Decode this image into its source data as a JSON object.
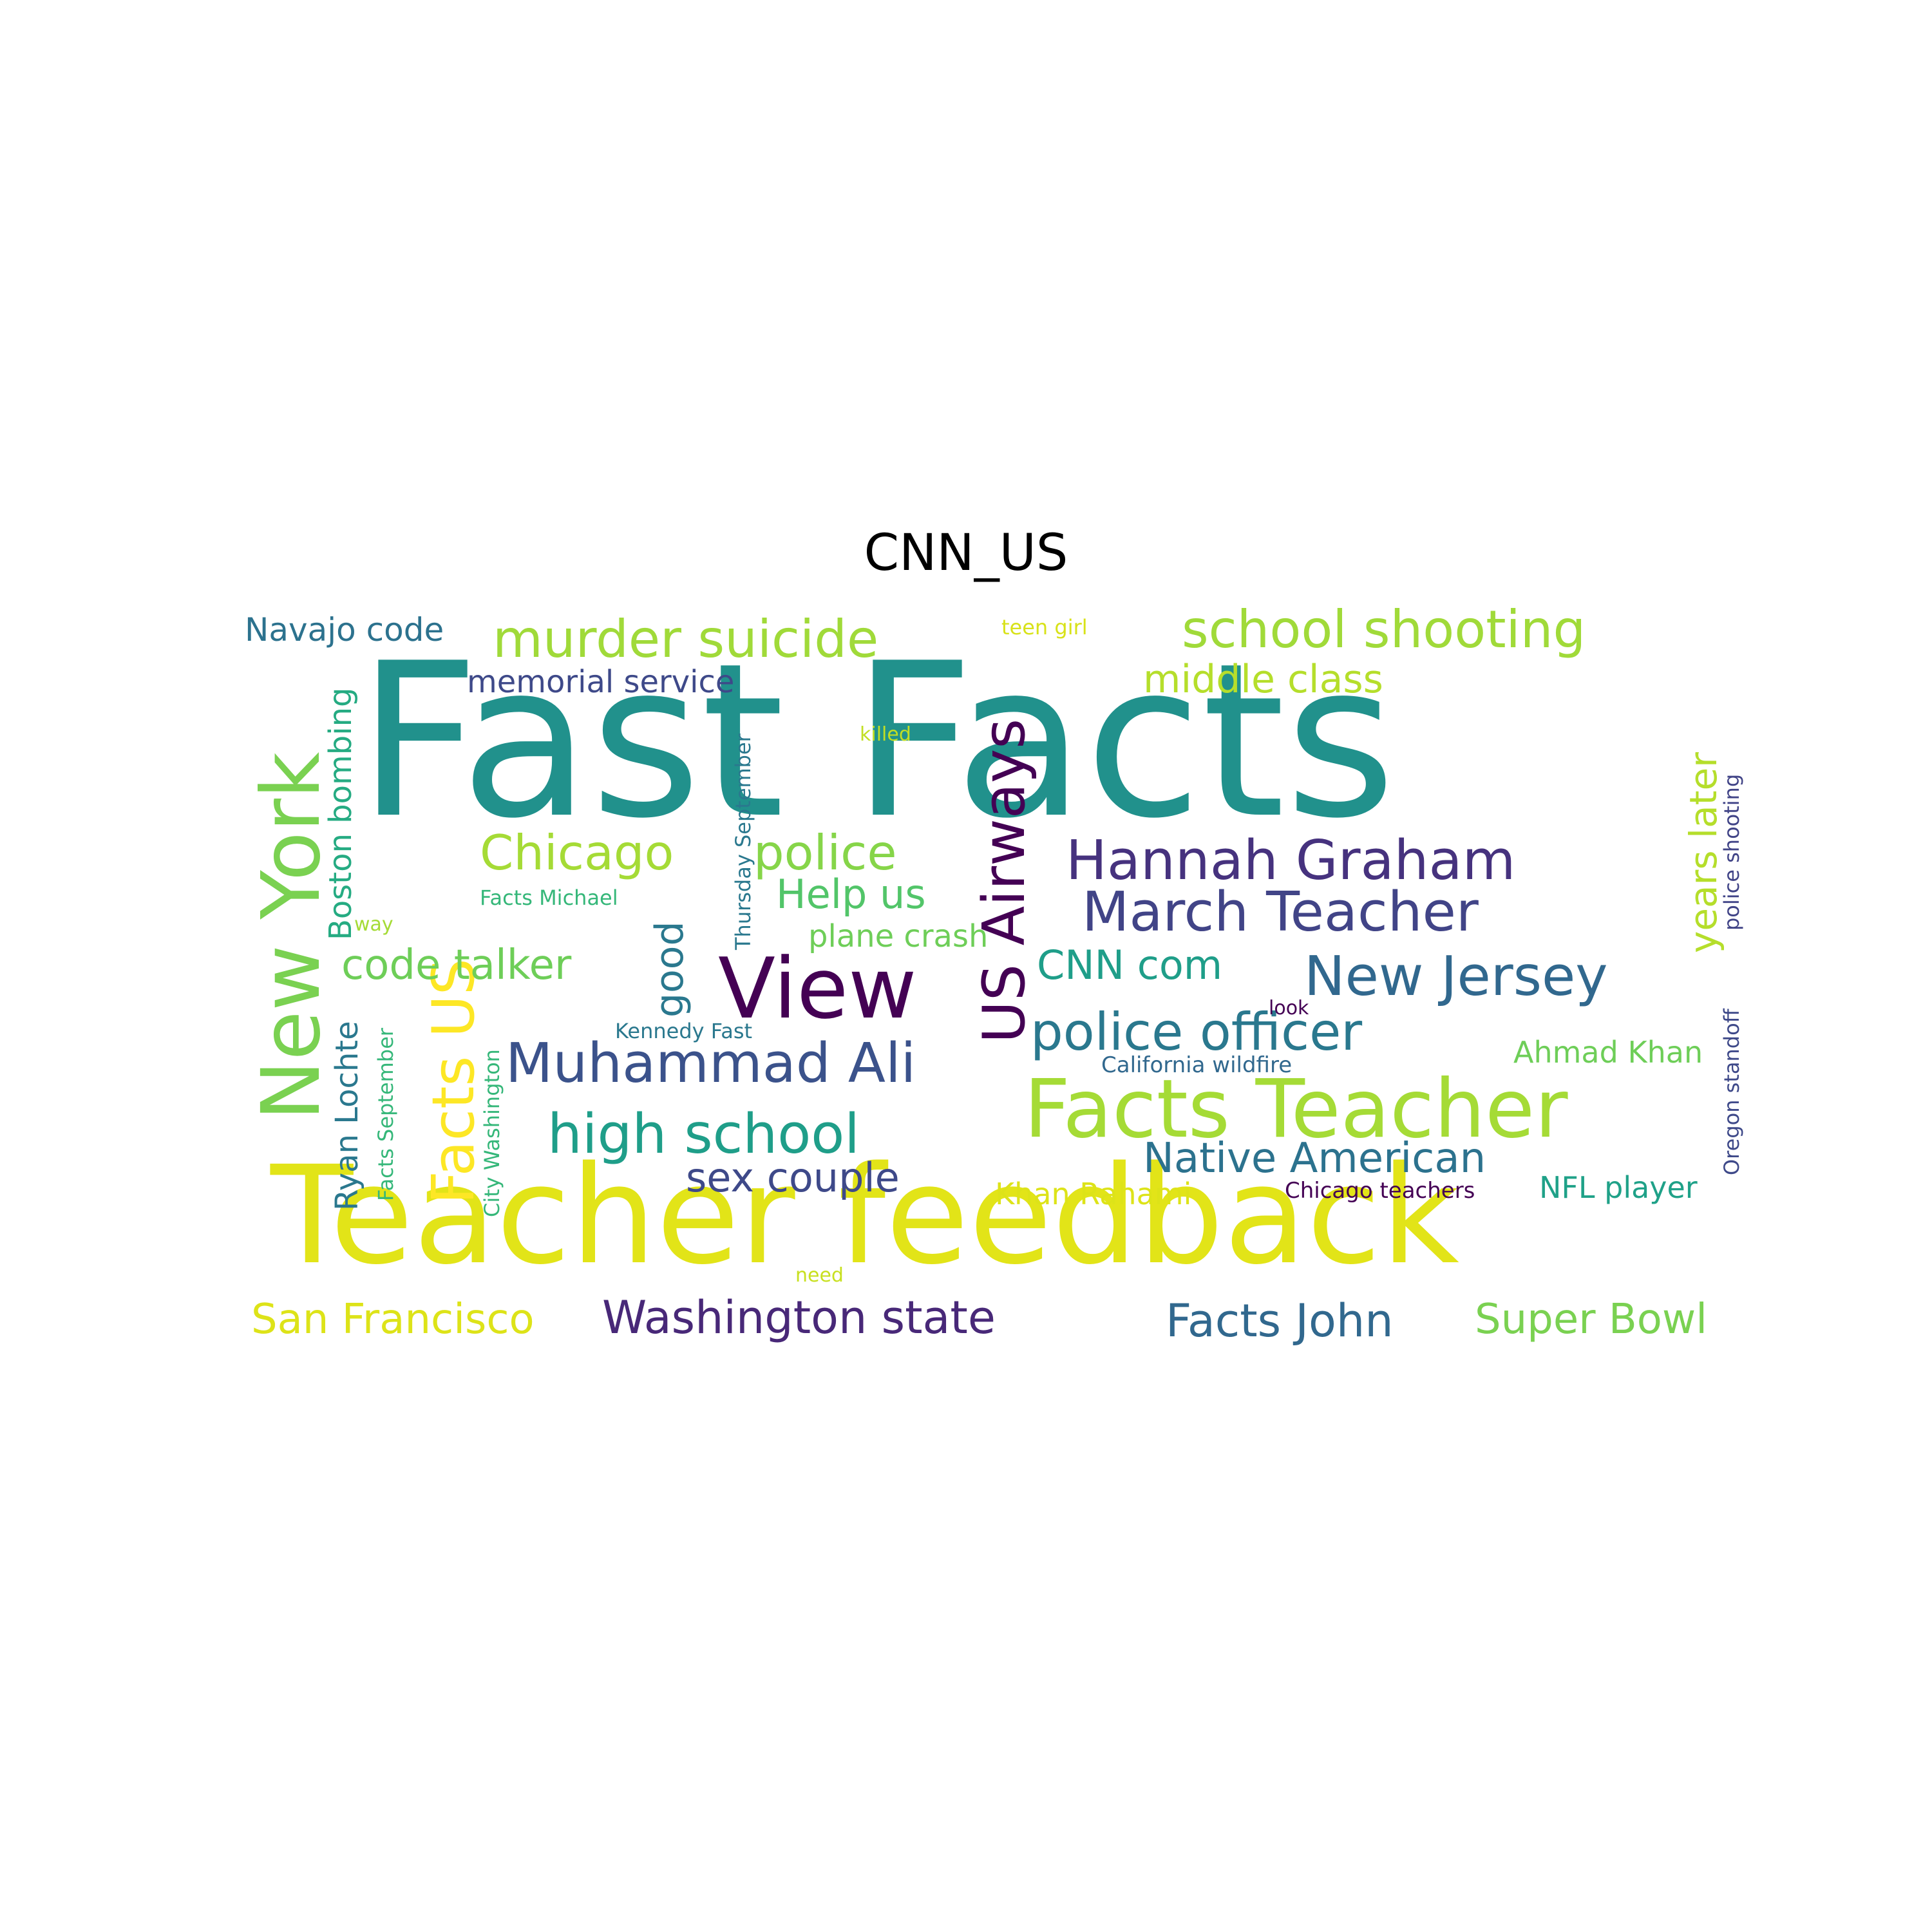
{
  "title": "CNN_US",
  "words": [
    {
      "text": "Fast Facts",
      "color": "#21918c"
    },
    {
      "text": "Teacher feedback",
      "color": "#e2e418"
    },
    {
      "text": "View",
      "color": "#440154"
    },
    {
      "text": "New York",
      "color": "#7ad151"
    },
    {
      "text": "Facts Teacher",
      "color": "#a5db36"
    },
    {
      "text": "US Airways",
      "color": "#440154"
    },
    {
      "text": "school shooting",
      "color": "#a0da39"
    },
    {
      "text": "murder suicide",
      "color": "#a0da39"
    },
    {
      "text": "Hannah Graham",
      "color": "#46327e"
    },
    {
      "text": "March Teacher",
      "color": "#414487"
    },
    {
      "text": "Muhammad Ali",
      "color": "#3b528b"
    },
    {
      "text": "high school",
      "color": "#1f9e89"
    },
    {
      "text": "police officer",
      "color": "#2a788e"
    },
    {
      "text": "New Jersey",
      "color": "#31688e"
    },
    {
      "text": "Facts US",
      "color": "#fde725"
    },
    {
      "text": "Chicago",
      "color": "#a5db36"
    },
    {
      "text": "police",
      "color": "#86d549"
    },
    {
      "text": "Washington state",
      "color": "#482878"
    },
    {
      "text": "Facts John",
      "color": "#31688e"
    },
    {
      "text": "Super Bowl",
      "color": "#7ad151"
    },
    {
      "text": "San Francisco",
      "color": "#dde318"
    },
    {
      "text": "code talker",
      "color": "#6ece58"
    },
    {
      "text": "Native American",
      "color": "#2c728e"
    },
    {
      "text": "good",
      "color": "#2a788e"
    },
    {
      "text": "years later",
      "color": "#b5de2b"
    },
    {
      "text": "middle class",
      "color": "#b5de2b"
    },
    {
      "text": "Help us",
      "color": "#52c569"
    },
    {
      "text": "CNN com",
      "color": "#1f9e89"
    },
    {
      "text": "sex couple",
      "color": "#3e4989"
    },
    {
      "text": "plane crash",
      "color": "#6ece58"
    },
    {
      "text": "memorial service",
      "color": "#3e4989"
    },
    {
      "text": "Navajo code",
      "color": "#2c728e"
    },
    {
      "text": "Boston bombing",
      "color": "#25ab82"
    },
    {
      "text": "Ryan Lochte",
      "color": "#2a788e"
    },
    {
      "text": "Khan Rahami",
      "color": "#dde318"
    },
    {
      "text": "NFL player",
      "color": "#1fa188"
    },
    {
      "text": "Ahmad Khan",
      "color": "#6ece58"
    },
    {
      "text": "Chicago teachers",
      "color": "#440154"
    },
    {
      "text": "California wildfire",
      "color": "#31688e"
    },
    {
      "text": "Kennedy Fast",
      "color": "#2a788e"
    },
    {
      "text": "Facts Michael",
      "color": "#35b779"
    },
    {
      "text": "Thursday September",
      "color": "#2a788e"
    },
    {
      "text": "City Washington",
      "color": "#35b779"
    },
    {
      "text": "Facts September",
      "color": "#35b779"
    },
    {
      "text": "Oregon standoff",
      "color": "#3e4989"
    },
    {
      "text": "police shooting",
      "color": "#414487"
    },
    {
      "text": "teen girl",
      "color": "#d8e219"
    },
    {
      "text": "killed",
      "color": "#c2df23"
    },
    {
      "text": "way",
      "color": "#a5db36"
    },
    {
      "text": "look",
      "color": "#440154"
    },
    {
      "text": "need",
      "color": "#c8e020"
    }
  ]
}
